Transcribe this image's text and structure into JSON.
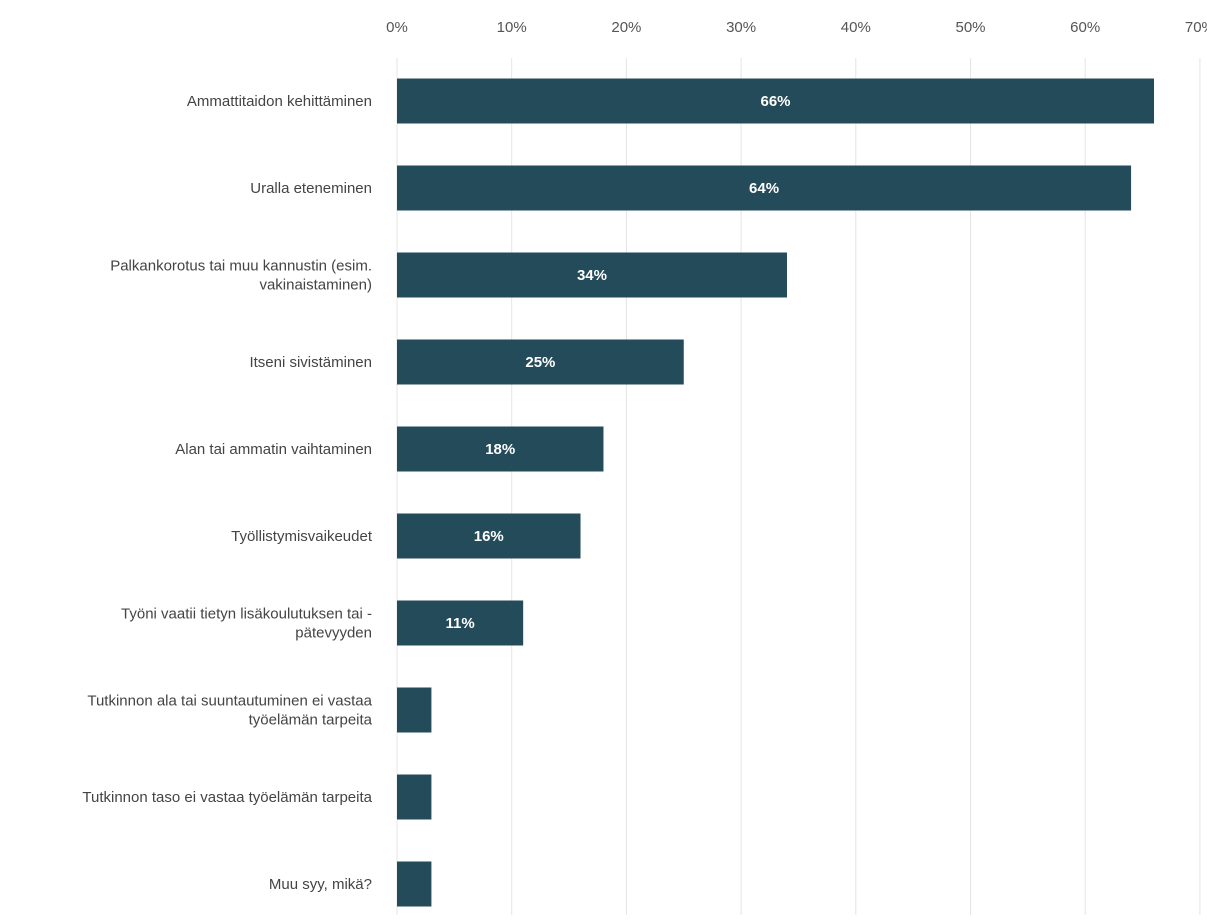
{
  "chart_data": {
    "type": "bar",
    "orientation": "horizontal",
    "title": "",
    "xlabel": "",
    "ylabel": "",
    "x_axis_position": "top",
    "xlim": [
      0,
      70
    ],
    "x_ticks": [
      0,
      10,
      20,
      30,
      40,
      50,
      60,
      70
    ],
    "x_tick_labels": [
      "0%",
      "10%",
      "20%",
      "30%",
      "40%",
      "50%",
      "60%",
      "70%"
    ],
    "grid": "vertical",
    "legend": "none",
    "bar_color": "#244b59",
    "categories": [
      [
        "Ammattitaidon kehittäminen"
      ],
      [
        "Uralla eteneminen"
      ],
      [
        "Palkankorotus tai muu kannustin (esim.",
        "vakinaistaminen)"
      ],
      [
        "Itseni sivistäminen"
      ],
      [
        "Alan tai ammatin vaihtaminen"
      ],
      [
        "Työllistymisvaikeudet"
      ],
      [
        "Työni vaatii tietyn lisäkoulutuksen tai -",
        "pätevyyden"
      ],
      [
        "Tutkinnon ala tai suuntautuminen ei vastaa",
        "työelämän tarpeita"
      ],
      [
        "Tutkinnon taso ei vastaa työelämän tarpeita"
      ],
      [
        "Muu syy, mikä?"
      ]
    ],
    "values": [
      66,
      64,
      34,
      25,
      18,
      16,
      11,
      3,
      3,
      3
    ],
    "data_labels": [
      "66%",
      "64%",
      "34%",
      "25%",
      "18%",
      "16%",
      "11%",
      "",
      "",
      ""
    ]
  }
}
